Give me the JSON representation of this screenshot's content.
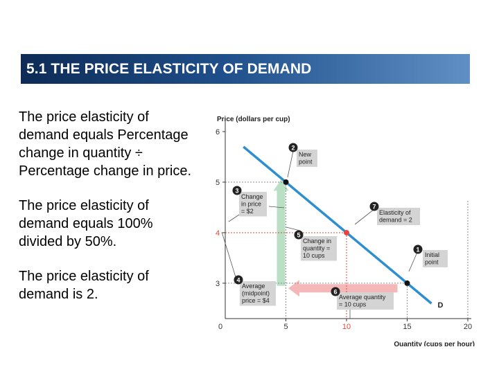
{
  "slide": {
    "title": "5.1  THE PRICE ELASTICITY OF DEMAND",
    "bullets": [
      "The price elasticity of demand equals Percentage change in quantity ÷ Percentage change in price.",
      "The price elasticity of demand equals 100% divided by 50%.",
      "The price elasticity of demand is 2."
    ]
  },
  "chart_data": {
    "type": "line",
    "ylabel": "Price (dollars per cup)",
    "xlabel": "Quantity (cups per hour)",
    "xlim": [
      0,
      20
    ],
    "ylim": [
      2.3,
      6
    ],
    "x_ticks": [
      {
        "value": 5,
        "label": "5",
        "highlight": false
      },
      {
        "value": 10,
        "label": "10",
        "highlight": true
      },
      {
        "value": 15,
        "label": "15",
        "highlight": false
      },
      {
        "value": 20,
        "label": "20",
        "highlight": false
      }
    ],
    "origin_label": "0",
    "y_ticks": [
      {
        "value": 3,
        "label": "3",
        "highlight": false
      },
      {
        "value": 4,
        "label": "4",
        "highlight": true
      },
      {
        "value": 5,
        "label": "5",
        "highlight": false
      },
      {
        "value": 6,
        "label": "6",
        "highlight": false
      }
    ],
    "series": [
      {
        "name": "D",
        "color": "#2d8fd0",
        "points": [
          [
            1.5,
            5.7
          ],
          [
            17,
            2.6
          ]
        ]
      }
    ],
    "points": [
      {
        "id": "new",
        "x": 5,
        "y": 5,
        "color": "#111111"
      },
      {
        "id": "midpoint",
        "x": 10,
        "y": 4,
        "color": "#e8453c"
      },
      {
        "id": "initial",
        "x": 15,
        "y": 3,
        "color": "#111111"
      }
    ],
    "arrows": [
      {
        "id": "price-change",
        "direction": "up",
        "x": 4.6,
        "from": 2.95,
        "to": 5.05,
        "color": "#b9dfc4"
      },
      {
        "id": "quantity-change",
        "direction": "left",
        "y": 2.9,
        "from": 14.2,
        "to": 5.2,
        "color": "#f5b8b8"
      }
    ],
    "annotations": [
      {
        "number": "1",
        "lines": [
          "Initial",
          "point"
        ]
      },
      {
        "number": "2",
        "lines": [
          "New",
          "point"
        ]
      },
      {
        "number": "3",
        "lines": [
          "Change",
          "in price",
          "= $2"
        ]
      },
      {
        "number": "4",
        "lines": [
          "Average",
          "(midpoint)",
          "price = $4"
        ]
      },
      {
        "number": "5",
        "lines": [
          "Change in",
          "quantity =",
          "10 cups"
        ]
      },
      {
        "number": "6",
        "lines": [
          "Average quantity",
          "= 10 cups"
        ]
      },
      {
        "number": "7",
        "lines": [
          "Elasticity of",
          "demand = 2"
        ]
      }
    ],
    "colors": {
      "axis": "#333333",
      "dashed": "#8a8a8a",
      "highlight": "#e8453c",
      "label_bg": "#d4d4d4"
    }
  }
}
